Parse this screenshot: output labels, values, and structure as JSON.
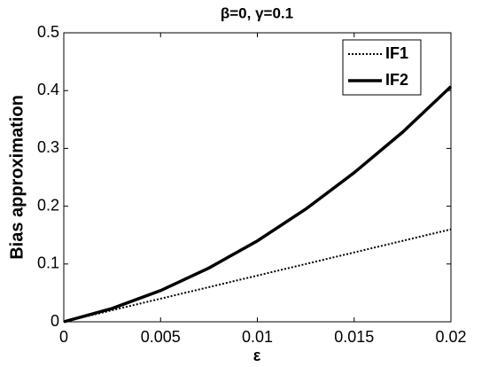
{
  "chart_data": {
    "type": "line",
    "title": "β=0, γ=0.1",
    "xlabel": "ε",
    "ylabel": "Bias approximation",
    "x": [
      0,
      0.0025,
      0.005,
      0.0075,
      0.01,
      0.0125,
      0.015,
      0.0175,
      0.02
    ],
    "series": [
      {
        "name": "IF1",
        "color": "#000000",
        "style": "dotted",
        "values": [
          0,
          0.02,
          0.04,
          0.06,
          0.08,
          0.1,
          0.12,
          0.14,
          0.16
        ]
      },
      {
        "name": "IF2",
        "color": "#000000",
        "style": "solid",
        "values": [
          0,
          0.0231,
          0.054,
          0.0931,
          0.14,
          0.195,
          0.258,
          0.328,
          0.407
        ]
      }
    ],
    "xlim": [
      0,
      0.02
    ],
    "xticks": [
      0,
      0.005,
      0.01,
      0.015,
      0.02
    ],
    "ylim": [
      0,
      0.5
    ],
    "yticks": [
      0,
      0.1,
      0.2,
      0.3,
      0.4,
      0.5
    ],
    "grid": false,
    "legend": "northeast"
  }
}
